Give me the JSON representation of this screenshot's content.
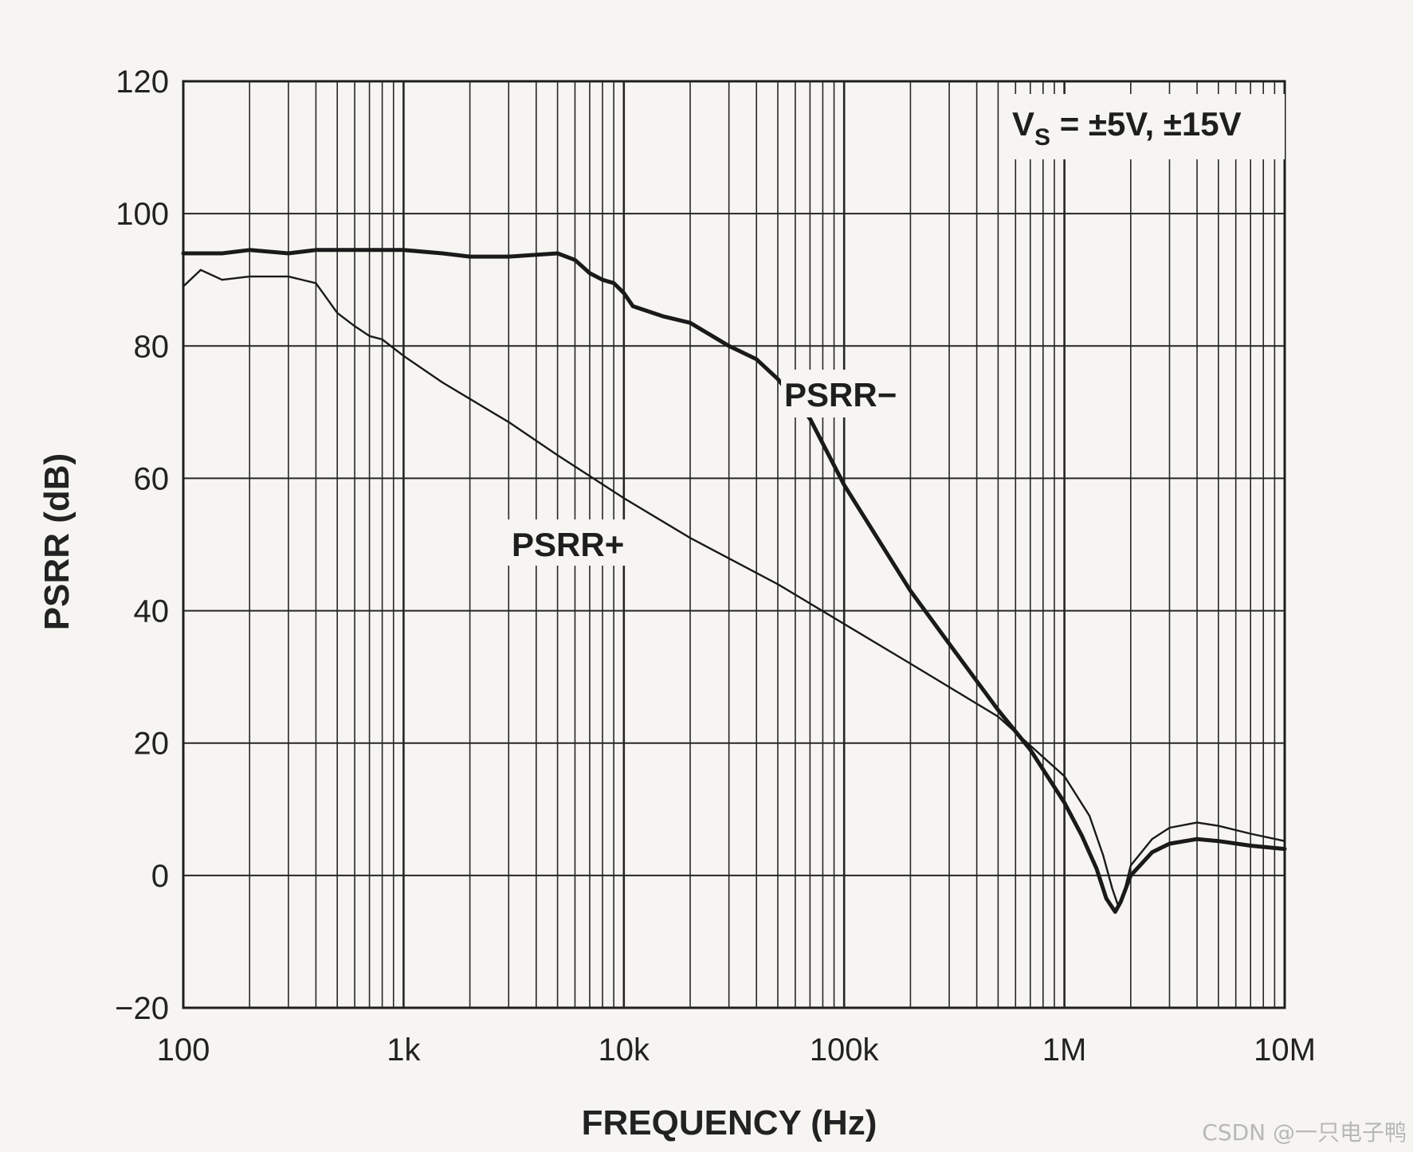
{
  "chart_data": {
    "type": "line",
    "xscale": "log",
    "xlim": [
      100,
      10000000
    ],
    "ylim": [
      -20,
      120
    ],
    "xlabel": "FREQUENCY (Hz)",
    "ylabel": "PSRR (dB)",
    "x_tick_labels": [
      {
        "value": 100,
        "label": "100"
      },
      {
        "value": 1000,
        "label": "1k"
      },
      {
        "value": 10000,
        "label": "10k"
      },
      {
        "value": 100000,
        "label": "100k"
      },
      {
        "value": 1000000,
        "label": "1M"
      },
      {
        "value": 10000000,
        "label": "10M"
      }
    ],
    "y_ticks": [
      -20,
      0,
      20,
      40,
      60,
      80,
      100,
      120
    ],
    "y_tick_labels": [
      "−20",
      "0",
      "20",
      "40",
      "60",
      "80",
      "100",
      "120"
    ],
    "grid": true,
    "annotation": {
      "prefix": "V",
      "subscript": "S",
      "suffix": " = ±5V, ±15V"
    },
    "series": [
      {
        "name": "PSRR−",
        "label": "PSRR−",
        "color": "#1a1a1a",
        "points": [
          [
            100,
            94
          ],
          [
            150,
            94
          ],
          [
            200,
            94.5
          ],
          [
            300,
            94
          ],
          [
            400,
            94.5
          ],
          [
            500,
            94.5
          ],
          [
            700,
            94.5
          ],
          [
            1000,
            94.5
          ],
          [
            1500,
            94
          ],
          [
            2000,
            93.5
          ],
          [
            3000,
            93.5
          ],
          [
            5000,
            94
          ],
          [
            6000,
            93
          ],
          [
            7000,
            91
          ],
          [
            8000,
            90
          ],
          [
            9000,
            89.5
          ],
          [
            10000,
            88
          ],
          [
            11000,
            86
          ],
          [
            15000,
            84.5
          ],
          [
            20000,
            83.5
          ],
          [
            30000,
            80
          ],
          [
            40000,
            78
          ],
          [
            50000,
            75
          ],
          [
            70000,
            69
          ],
          [
            100000,
            59
          ],
          [
            200000,
            43
          ],
          [
            300000,
            35
          ],
          [
            500000,
            25
          ],
          [
            700000,
            19
          ],
          [
            1000000,
            11
          ],
          [
            1200000,
            6
          ],
          [
            1400000,
            1
          ],
          [
            1550000,
            -3.5
          ],
          [
            1700000,
            -5.5
          ],
          [
            1800000,
            -4
          ],
          [
            2000000,
            0
          ],
          [
            2500000,
            3.5
          ],
          [
            3000000,
            4.8
          ],
          [
            4000000,
            5.5
          ],
          [
            5000000,
            5.2
          ],
          [
            7000000,
            4.5
          ],
          [
            10000000,
            4
          ]
        ]
      },
      {
        "name": "PSRR+",
        "label": "PSRR+",
        "color": "#1a1a1a",
        "points": [
          [
            100,
            89
          ],
          [
            120,
            91.5
          ],
          [
            150,
            90
          ],
          [
            200,
            90.5
          ],
          [
            300,
            90.5
          ],
          [
            400,
            89.5
          ],
          [
            500,
            85
          ],
          [
            600,
            83
          ],
          [
            700,
            81.5
          ],
          [
            800,
            81
          ],
          [
            1000,
            78.5
          ],
          [
            1500,
            74.5
          ],
          [
            2000,
            72
          ],
          [
            3000,
            68.5
          ],
          [
            5000,
            63.5
          ],
          [
            10000,
            57
          ],
          [
            20000,
            51
          ],
          [
            50000,
            44
          ],
          [
            100000,
            38
          ],
          [
            200000,
            32
          ],
          [
            500000,
            24
          ],
          [
            1000000,
            15
          ],
          [
            1300000,
            9
          ],
          [
            1500000,
            3
          ],
          [
            1650000,
            -2
          ],
          [
            1750000,
            -4.5
          ],
          [
            1850000,
            -3
          ],
          [
            2000000,
            1.5
          ],
          [
            2500000,
            5.5
          ],
          [
            3000000,
            7.2
          ],
          [
            4000000,
            8
          ],
          [
            5000000,
            7.5
          ],
          [
            7000000,
            6.3
          ],
          [
            10000000,
            5.2
          ]
        ]
      }
    ]
  },
  "watermark": "CSDN @一只电子鸭"
}
